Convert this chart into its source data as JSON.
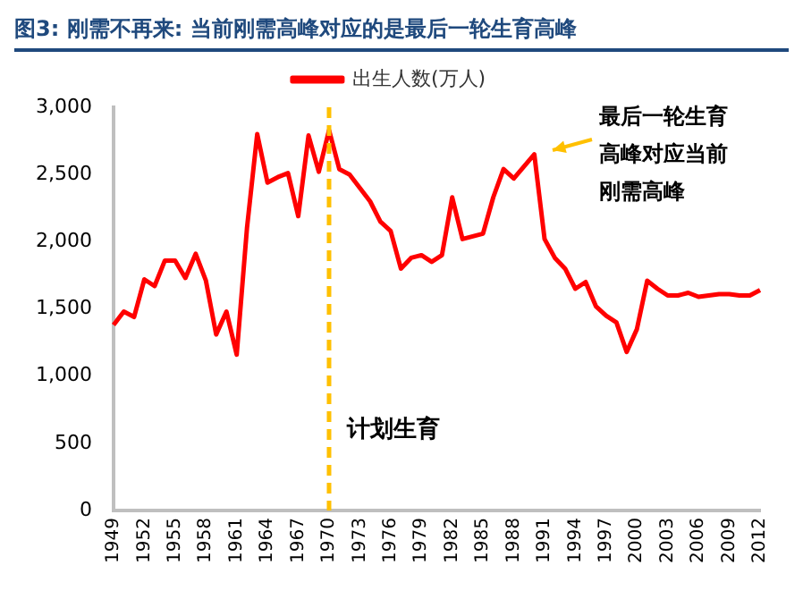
{
  "chart_data": {
    "type": "line",
    "title": "图3: 刚需不再来: 当前刚需高峰对应的是最后一轮生育高峰",
    "categories": [
      "1949",
      null,
      null,
      "1952",
      null,
      null,
      "1955",
      null,
      null,
      "1958",
      null,
      null,
      "1961",
      null,
      null,
      "1964",
      null,
      null,
      "1967",
      null,
      null,
      "1970",
      null,
      null,
      "1973",
      null,
      null,
      "1976",
      null,
      null,
      "1979",
      null,
      null,
      "1982",
      null,
      null,
      "1985",
      null,
      null,
      "1988",
      null,
      null,
      "1991",
      null,
      null,
      "1994",
      null,
      null,
      "1997",
      null,
      null,
      "2000",
      null,
      null,
      "2003",
      null,
      null,
      "2006",
      null,
      null,
      "2009",
      null,
      null,
      "2012"
    ],
    "series": [
      {
        "name": "出生人数(万人)",
        "color": "#ff0000",
        "values": [
          1380,
          1480,
          1440,
          1720,
          1670,
          1860,
          1860,
          1730,
          1910,
          1710,
          1310,
          1480,
          1160,
          2100,
          2800,
          2440,
          2480,
          2510,
          2190,
          2790,
          2520,
          2830,
          2540,
          2500,
          2400,
          2300,
          2150,
          2080,
          1800,
          1880,
          1900,
          1850,
          1900,
          2330,
          2020,
          2040,
          2060,
          2330,
          2540,
          2470,
          2560,
          2650,
          2020,
          1880,
          1800,
          1650,
          1700,
          1520,
          1450,
          1400,
          1180,
          1350,
          1710,
          1650,
          1600,
          1600,
          1620,
          1590,
          1600,
          1610,
          1610,
          1600,
          1600,
          1640
        ]
      }
    ],
    "ylim": [
      0,
      3000
    ],
    "yticks": [
      0,
      500,
      {
        "value": 1000,
        "label": "1,000"
      },
      {
        "value": 1500,
        "label": "1,500"
      },
      {
        "value": 2000,
        "label": "2,000"
      },
      {
        "value": 2500,
        "label": "2,500"
      },
      {
        "value": 3000,
        "label": "3,000"
      }
    ],
    "ref_lines": [
      {
        "axis": "x",
        "value": "1970",
        "label": "计划生育",
        "color": "#ffc000",
        "line_style": "dashed"
      }
    ],
    "annotations": [
      "最后一轮生育高峰对应当前刚需高峰"
    ],
    "legend": "top",
    "grid": false,
    "marker": "none",
    "line_style": "solid"
  }
}
